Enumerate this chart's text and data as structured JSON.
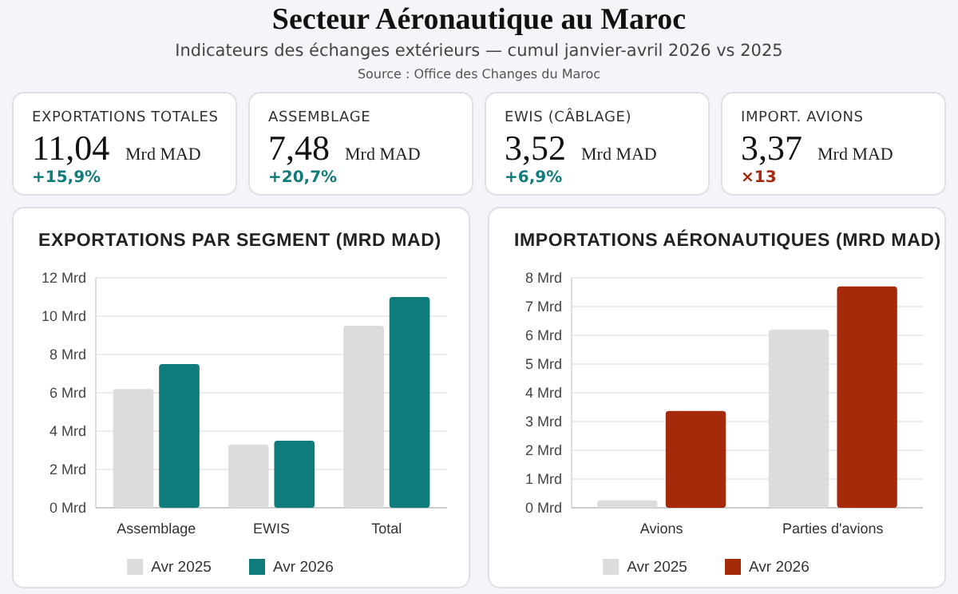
{
  "chart_data": [
    {
      "type": "other",
      "title": "Secteur Aéronautique au Maroc",
      "subtitle": "Indicateurs des échanges extérieurs — cumul janvier-avril 2026 vs 2025",
      "annotations": [
        "Source : Office des Changes du Maroc"
      ]
    },
    {
      "type": "other",
      "title": "EXPORTATIONS TOTALES",
      "annotations": [
        "11,04",
        "Mrd MAD",
        "+15,9%"
      ],
      "color": "#127b7b"
    },
    {
      "type": "other",
      "title": "ASSEMBLAGE",
      "annotations": [
        "7,48",
        "Mrd MAD",
        "+20,7%"
      ],
      "color": "#127b7b"
    },
    {
      "type": "other",
      "title": "EWIS (CÂBLAGE)",
      "annotations": [
        "3,52",
        "Mrd MAD",
        "+6,9%"
      ],
      "color": "#127b7b"
    },
    {
      "type": "other",
      "title": "IMPORT. AVIONS",
      "annotations": [
        "3,37",
        "Mrd MAD",
        "×13"
      ],
      "color": "#a8280f"
    },
    {
      "type": "bar",
      "title": "EXPORTATIONS PAR SEGMENT (MRD MAD)",
      "categories": [
        "Assemblage",
        "EWIS",
        "Total"
      ],
      "series": [
        {
          "name": "Avr 2025",
          "color": "#dcdcdc",
          "values": [
            6.2,
            3.3,
            9.5
          ]
        },
        {
          "name": "Avr 2026",
          "color": "#0f7b7b",
          "values": [
            7.5,
            3.5,
            11.0
          ]
        }
      ],
      "ylim": [
        0,
        12
      ],
      "yticks": [
        {
          "value": 0,
          "label": "0 Mrd"
        },
        {
          "value": 2,
          "label": "2 Mrd"
        },
        {
          "value": 4,
          "label": "4 Mrd"
        },
        {
          "value": 6,
          "label": "6 Mrd"
        },
        {
          "value": 8,
          "label": "8 Mrd"
        },
        {
          "value": 10,
          "label": "10 Mrd"
        },
        {
          "value": 12,
          "label": "12 Mrd"
        }
      ],
      "grid": "y",
      "legend": "bottom"
    },
    {
      "type": "bar",
      "title": "IMPORTATIONS AÉRONAUTIQUES (MRD MAD)",
      "categories": [
        "Avions",
        "Parties d'avions"
      ],
      "series": [
        {
          "name": "Avr 2025",
          "color": "#dcdcdc",
          "values": [
            0.26,
            6.2
          ]
        },
        {
          "name": "Avr 2026",
          "color": "#a52a0a",
          "values": [
            3.37,
            7.7
          ]
        }
      ],
      "ylim": [
        0,
        8
      ],
      "yticks": [
        {
          "value": 0,
          "label": "0 Mrd"
        },
        {
          "value": 1,
          "label": "1 Mrd"
        },
        {
          "value": 2,
          "label": "2 Mrd"
        },
        {
          "value": 3,
          "label": "3 Mrd"
        },
        {
          "value": 4,
          "label": "4 Mrd"
        },
        {
          "value": 5,
          "label": "5 Mrd"
        },
        {
          "value": 6,
          "label": "6 Mrd"
        },
        {
          "value": 7,
          "label": "7 Mrd"
        },
        {
          "value": 8,
          "label": "8 Mrd"
        }
      ],
      "grid": "y",
      "legend": "bottom"
    }
  ]
}
